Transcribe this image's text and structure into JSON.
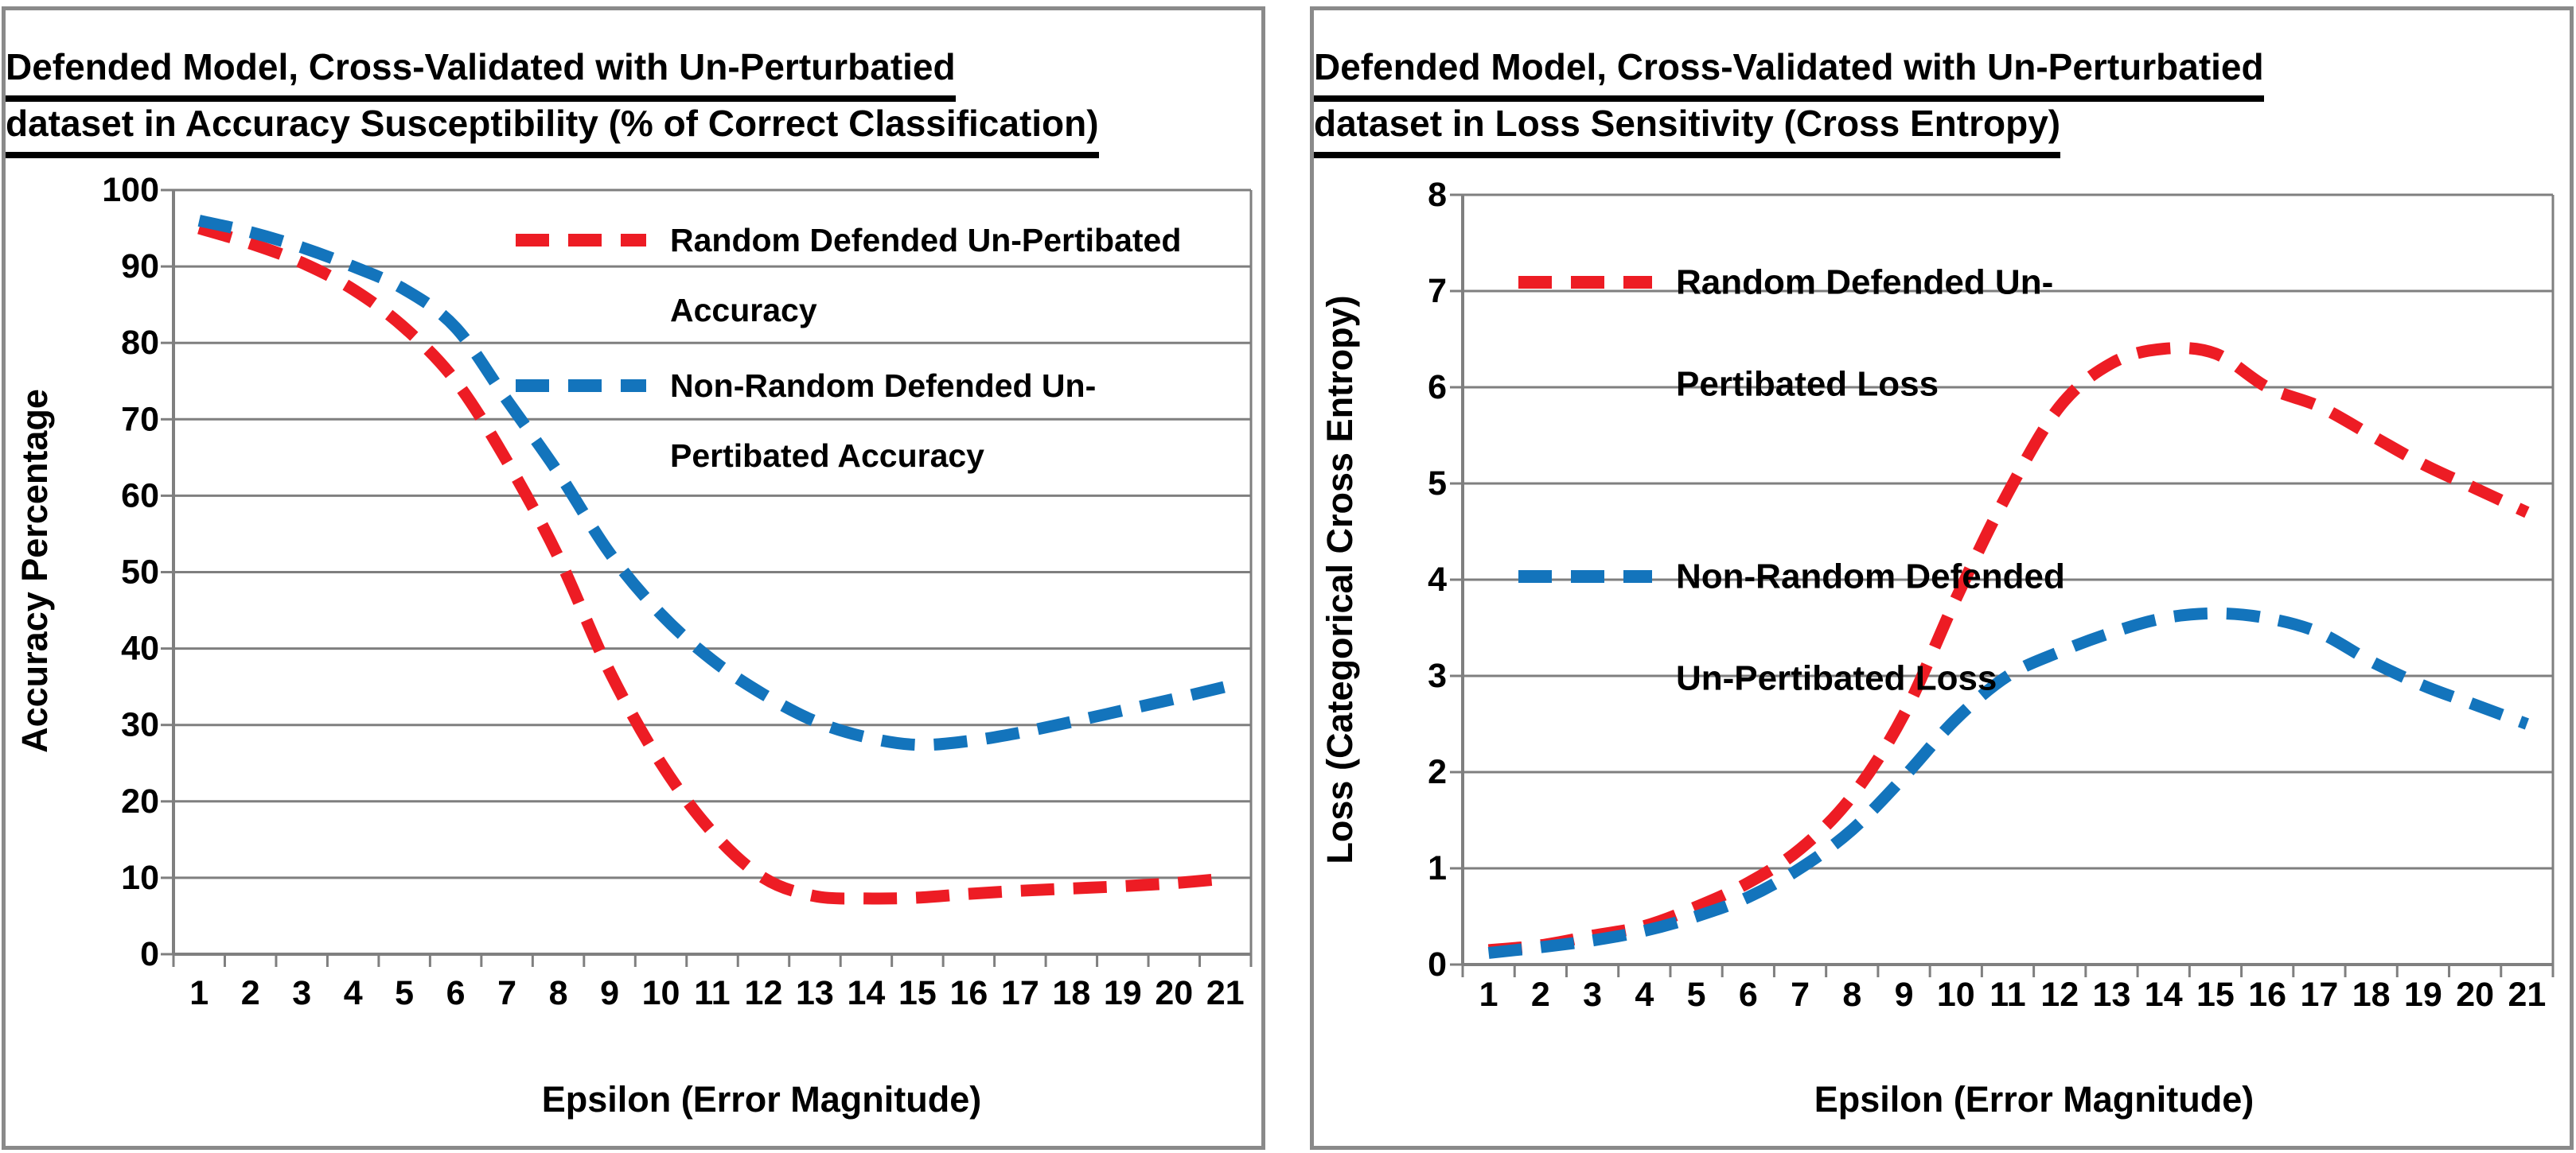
{
  "colors": {
    "red_series": "#ed1c24",
    "blue_series": "#1374bc",
    "gridline": "#7f7f7f",
    "axis": "#7f7f7f",
    "panel_border": "#8a8a8a",
    "text": "#000000",
    "background": "#ffffff"
  },
  "chart_data": [
    {
      "type": "line",
      "style": "dashed-smooth",
      "title_lines": [
        "Defended Model, Cross-Validated with Un-Perturbatied",
        "dataset in Accuracy Susceptibility (% of Correct Classification)"
      ],
      "xlabel": "Epsilon (Error Magnitude)",
      "ylabel": "Accuracy Percentage",
      "x": [
        1,
        2,
        3,
        4,
        5,
        6,
        7,
        8,
        9,
        10,
        11,
        12,
        13,
        14,
        15,
        16,
        17,
        18,
        19,
        20,
        21
      ],
      "ylim": [
        0,
        100
      ],
      "ytick_step": 10,
      "grid": true,
      "legend_position": "inside-top-right",
      "series": [
        {
          "name": "Random Defended Un-Pertibated Accuracy",
          "legend_lines": [
            "Random Defended Un-Pertibated",
            "Accuracy"
          ],
          "color": "#ed1c24",
          "values": [
            95,
            93,
            90.5,
            87,
            82,
            75,
            64.5,
            52,
            37,
            25,
            16,
            10,
            7.6,
            7.3,
            7.4,
            7.9,
            8.3,
            8.6,
            8.9,
            9.3,
            9.9
          ]
        },
        {
          "name": "Non-Random Defended Un-Pertibated Accuracy",
          "legend_lines": [
            "Non-Random Defended Un-",
            "Pertibated Accuracy"
          ],
          "color": "#1374bc",
          "values": [
            96,
            94.5,
            92.5,
            90,
            87,
            82,
            72.5,
            63,
            52.5,
            44.5,
            38.5,
            34,
            30.5,
            28.4,
            27.4,
            27.9,
            29,
            30.4,
            31.9,
            33.4,
            35
          ]
        }
      ]
    },
    {
      "type": "line",
      "style": "dashed-smooth",
      "title_lines": [
        "Defended Model, Cross-Validated with Un-Perturbatied",
        "dataset in Loss Sensitivity (Cross Entropy)"
      ],
      "xlabel": "Epsilon (Error Magnitude)",
      "ylabel": "Loss (Categorical Cross Entropy)",
      "x": [
        1,
        2,
        3,
        4,
        5,
        6,
        7,
        8,
        9,
        10,
        11,
        12,
        13,
        14,
        15,
        16,
        17,
        18,
        19,
        20,
        21
      ],
      "ylim": [
        0,
        8
      ],
      "ytick_step": 1,
      "grid": true,
      "legend_position": "inside-top-left",
      "series": [
        {
          "name": "Random Defended Un-Pertibated Loss",
          "legend_lines": [
            "Random Defended Un-",
            "Pertibated Loss"
          ],
          "color": "#ed1c24",
          "values": [
            0.15,
            0.2,
            0.3,
            0.4,
            0.6,
            0.85,
            1.2,
            1.75,
            2.6,
            3.8,
            4.9,
            5.8,
            6.25,
            6.4,
            6.35,
            6.0,
            5.8,
            5.5,
            5.2,
            4.95,
            4.7
          ]
        },
        {
          "name": "Non-Random Defended Un-Pertibated Loss",
          "legend_lines": [
            "Non-Random Defended",
            "Un-Pertibated Loss"
          ],
          "color": "#1374bc",
          "values": [
            0.12,
            0.18,
            0.25,
            0.35,
            0.5,
            0.7,
            1.0,
            1.4,
            1.95,
            2.55,
            3.0,
            3.25,
            3.45,
            3.6,
            3.65,
            3.6,
            3.45,
            3.15,
            2.9,
            2.7,
            2.5
          ]
        }
      ]
    }
  ]
}
